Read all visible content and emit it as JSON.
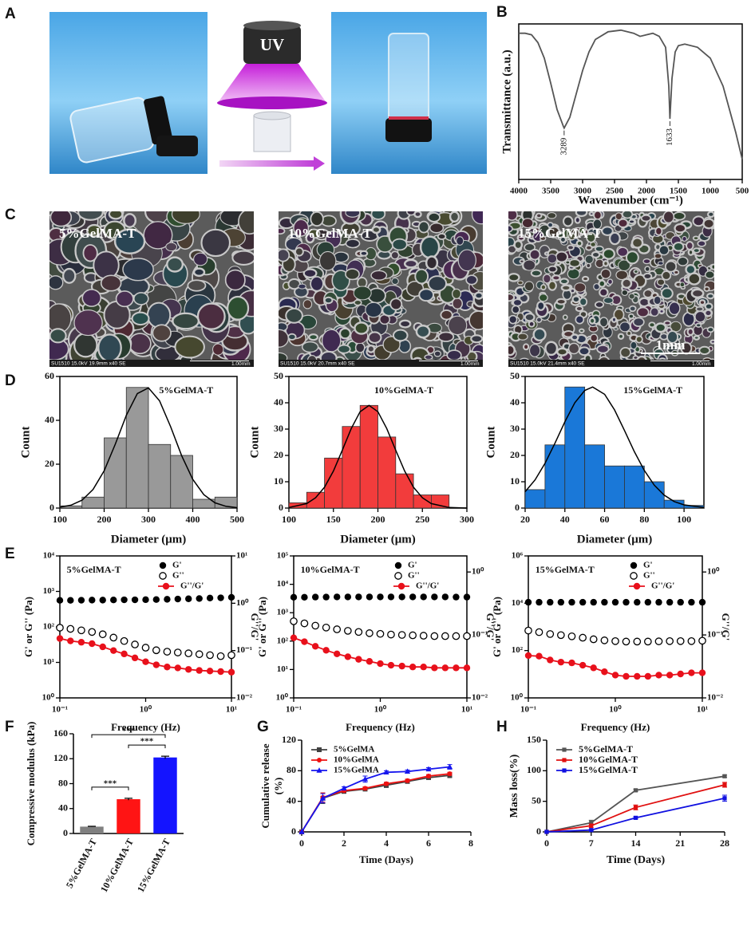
{
  "panels": [
    "A",
    "B",
    "C",
    "D",
    "E",
    "F",
    "G",
    "H"
  ],
  "photos": {
    "lamp_label": "UV"
  },
  "sem": [
    {
      "label": "5%GelMA-T",
      "info": "SU1510 15.0kV 19.9mm x40 SE",
      "scale": "1.00mm"
    },
    {
      "label": "10%GelMA-T",
      "info": "SU1510 15.0kV 20.7mm x40 SE",
      "scale": "1.00mm"
    },
    {
      "label": "15%GelMA-T",
      "info": "SU1510 15.0kV 21.4mm x40 SE",
      "scale": "1.00mm",
      "scale_bar": "1mm"
    }
  ],
  "chart_data": [
    {
      "type": "line",
      "xlabel": "Wavenumber (cm⁻¹)",
      "ylabel": "Transmittance (a.u.)",
      "x": [
        4000,
        3900,
        3800,
        3700,
        3600,
        3500,
        3400,
        3300,
        3289,
        3200,
        3100,
        3000,
        2900,
        2800,
        2600,
        2400,
        2200,
        2100,
        2000,
        1900,
        1800,
        1700,
        1650,
        1633,
        1600,
        1550,
        1500,
        1400,
        1200,
        1000,
        800,
        600,
        500
      ],
      "series": [
        {
          "name": "FTIR",
          "color": "#555555",
          "values": [
            94,
            94,
            93,
            88,
            78,
            62,
            45,
            34,
            33,
            40,
            55,
            70,
            82,
            90,
            95,
            96,
            94,
            92,
            93,
            94,
            92,
            85,
            60,
            39,
            65,
            82,
            86,
            87,
            85,
            78,
            60,
            30,
            13
          ]
        }
      ],
      "xlim": [
        4000,
        500
      ],
      "xticks": [
        4000,
        3500,
        3000,
        2500,
        2000,
        1500,
        1000,
        500
      ],
      "ylim": [
        0,
        100
      ],
      "annotations": [
        {
          "x": 3289,
          "label": "3289"
        },
        {
          "x": 1633,
          "label": "1633"
        }
      ]
    },
    {
      "type": "histogram",
      "title": "5%GelMA-T",
      "xlabel": "Diameter (μm)",
      "ylabel": "Count",
      "color": "#999999",
      "bins": [
        100,
        150,
        200,
        250,
        300,
        350,
        400,
        450,
        500
      ],
      "counts": [
        1,
        5,
        32,
        55,
        29,
        24,
        4,
        5
      ],
      "fit": {
        "x": [
          100,
          125,
          150,
          175,
          200,
          225,
          250,
          275,
          300,
          325,
          350,
          375,
          400,
          425,
          450,
          475,
          500
        ],
        "values": [
          0.4,
          1.3,
          3.6,
          8.5,
          17,
          29.1,
          42.3,
          52.2,
          54.8,
          48.9,
          37.1,
          23.9,
          13.1,
          6.1,
          2.4,
          0.8,
          0.2
        ]
      },
      "xlim": [
        100,
        500
      ],
      "xticks": [
        100,
        200,
        300,
        400,
        500
      ],
      "ylim": [
        0,
        60
      ],
      "yticks": [
        0,
        20,
        40,
        60
      ]
    },
    {
      "type": "histogram",
      "title": "10%GelMA-T",
      "xlabel": "Diameter (μm)",
      "ylabel": "Count",
      "color": "#f23c3c",
      "bins": [
        100,
        120,
        140,
        160,
        180,
        200,
        220,
        240,
        260,
        280
      ],
      "counts": [
        2,
        6,
        19,
        31,
        39,
        27,
        13,
        5,
        5
      ],
      "fit": {
        "x": [
          100,
          120,
          130,
          140,
          150,
          160,
          170,
          180,
          190,
          200,
          210,
          220,
          230,
          240,
          250,
          260,
          280,
          300
        ],
        "values": [
          0.2,
          1.7,
          3.9,
          7.9,
          14.1,
          22,
          30.2,
          36.6,
          39,
          36.6,
          30.2,
          22,
          14.1,
          7.9,
          3.9,
          1.7,
          0.2,
          0
        ]
      },
      "xlim": [
        100,
        300
      ],
      "xticks": [
        100,
        150,
        200,
        250,
        300
      ],
      "ylim": [
        0,
        50
      ],
      "yticks": [
        0,
        10,
        20,
        30,
        40,
        50
      ]
    },
    {
      "type": "histogram",
      "title": "15%GelMA-T",
      "xlabel": "Diameter (μm)",
      "ylabel": "Count",
      "color": "#1a78d8",
      "bins": [
        20,
        30,
        40,
        50,
        60,
        70,
        80,
        90,
        100,
        110
      ],
      "counts": [
        7,
        24,
        46,
        24,
        16,
        16,
        10,
        3,
        1
      ],
      "fit": {
        "x": [
          20,
          25,
          30,
          35,
          40,
          45,
          50,
          54,
          60,
          65,
          70,
          75,
          80,
          85,
          90,
          95,
          100,
          110
        ],
        "values": [
          6.2,
          10.7,
          17,
          24.6,
          32.8,
          40,
          44.7,
          46,
          43.2,
          37.3,
          29.5,
          21.4,
          14.3,
          8.7,
          4.9,
          2.5,
          1.2,
          0.2
        ]
      },
      "xlim": [
        20,
        110
      ],
      "xticks": [
        20,
        40,
        60,
        80,
        100
      ],
      "ylim": [
        0,
        50
      ],
      "yticks": [
        0,
        10,
        20,
        30,
        40,
        50
      ]
    },
    {
      "type": "line",
      "title": "5%GelMA-T",
      "xlabel": "Frequency (Hz)",
      "ylabel": "G' or G'' (Pa)",
      "y2label": "G''/G'",
      "xlog": true,
      "ylog": true,
      "y2log": true,
      "legend": "upper right",
      "x": [
        0.1,
        0.133,
        0.178,
        0.237,
        0.316,
        0.422,
        0.562,
        0.75,
        1,
        1.33,
        1.78,
        2.37,
        3.16,
        4.22,
        5.62,
        7.5,
        10
      ],
      "series": [
        {
          "name": "G'",
          "color": "#000000",
          "marker": "circle",
          "line": false,
          "values": [
            560,
            560,
            565,
            570,
            570,
            575,
            580,
            580,
            585,
            590,
            600,
            610,
            620,
            630,
            650,
            660,
            680
          ]
        },
        {
          "name": "G''",
          "color": "#000000",
          "marker": "open-circle",
          "line": false,
          "values": [
            95,
            88,
            80,
            72,
            62,
            50,
            40,
            32,
            26,
            22,
            20,
            19,
            18,
            17,
            16,
            15,
            16
          ]
        },
        {
          "name": "G''/G'",
          "color": "#e8101b",
          "marker": "circle",
          "axis": "y2",
          "values": [
            0.18,
            0.16,
            0.15,
            0.14,
            0.12,
            0.1,
            0.085,
            0.07,
            0.058,
            0.05,
            0.045,
            0.043,
            0.04,
            0.038,
            0.037,
            0.036,
            0.035
          ]
        }
      ],
      "xlim": [
        0.1,
        10
      ],
      "xticks": [
        {
          "value": 0.1,
          "label": "10⁻¹"
        },
        {
          "value": 1,
          "label": "10⁰"
        },
        {
          "value": 10,
          "label": "10¹"
        }
      ],
      "ylim": [
        1,
        10000
      ],
      "yticks": [
        {
          "value": 1,
          "label": "10⁰"
        },
        {
          "value": 10,
          "label": "10¹"
        },
        {
          "value": 100,
          "label": "10²"
        },
        {
          "value": 1000,
          "label": "10³"
        },
        {
          "value": 10000,
          "label": "10⁴"
        }
      ],
      "y2lim": [
        0.01,
        10
      ],
      "y2ticks": [
        {
          "value": 0.01,
          "label": "10⁻²"
        },
        {
          "value": 0.1,
          "label": "10⁻¹"
        },
        {
          "value": 1,
          "label": "10⁰"
        },
        {
          "value": 10,
          "label": "10¹"
        }
      ]
    },
    {
      "type": "line",
      "title": "10%GelMA-T",
      "xlabel": "Frequency (Hz)",
      "ylabel": "G' or G'' (Pa)",
      "y2label": "G''/G'",
      "xlog": true,
      "ylog": true,
      "y2log": true,
      "legend": "upper right",
      "x": [
        0.1,
        0.133,
        0.178,
        0.237,
        0.316,
        0.422,
        0.562,
        0.75,
        1,
        1.33,
        1.78,
        2.37,
        3.16,
        4.22,
        5.62,
        7.5,
        10
      ],
      "series": [
        {
          "name": "G'",
          "color": "#000000",
          "marker": "circle",
          "line": false,
          "values": [
            3500,
            3500,
            3550,
            3550,
            3600,
            3600,
            3600,
            3600,
            3600,
            3600,
            3600,
            3600,
            3600,
            3600,
            3600,
            3550,
            3550
          ]
        },
        {
          "name": "G''",
          "color": "#000000",
          "marker": "open-circle",
          "line": false,
          "values": [
            500,
            420,
            350,
            300,
            260,
            230,
            210,
            190,
            180,
            170,
            165,
            160,
            155,
            150,
            150,
            150,
            150
          ]
        },
        {
          "name": "G''/G'",
          "color": "#e8101b",
          "marker": "circle",
          "axis": "y2",
          "values": [
            0.09,
            0.078,
            0.066,
            0.057,
            0.05,
            0.045,
            0.041,
            0.038,
            0.035,
            0.033,
            0.032,
            0.031,
            0.031,
            0.03,
            0.03,
            0.03,
            0.03
          ]
        }
      ],
      "xlim": [
        0.1,
        10
      ],
      "xticks": [
        {
          "value": 0.1,
          "label": "10⁻¹"
        },
        {
          "value": 1,
          "label": "10⁰"
        },
        {
          "value": 10,
          "label": "10¹"
        }
      ],
      "ylim": [
        1,
        100000
      ],
      "yticks": [
        {
          "value": 1,
          "label": "10⁰"
        },
        {
          "value": 10,
          "label": "10¹"
        },
        {
          "value": 100,
          "label": "10²"
        },
        {
          "value": 1000,
          "label": "10³"
        },
        {
          "value": 10000,
          "label": "10⁴"
        },
        {
          "value": 100000,
          "label": "10⁵"
        }
      ],
      "y2lim": [
        0.01,
        1.8
      ],
      "y2ticks": [
        {
          "value": 0.01,
          "label": "10⁻²"
        },
        {
          "value": 0.1,
          "label": "10⁻¹"
        },
        {
          "value": 1,
          "label": "10⁰"
        }
      ]
    },
    {
      "type": "line",
      "title": "15%GelMA-T",
      "xlabel": "Frequency (Hz)",
      "ylabel": "G' or G'' (Pa)",
      "y2label": "G''/G'",
      "xlog": true,
      "ylog": true,
      "y2log": true,
      "legend": "upper right",
      "x": [
        0.1,
        0.133,
        0.178,
        0.237,
        0.316,
        0.422,
        0.562,
        0.75,
        1,
        1.33,
        1.78,
        2.37,
        3.16,
        4.22,
        5.62,
        7.5,
        10
      ],
      "series": [
        {
          "name": "G'",
          "color": "#000000",
          "marker": "circle",
          "line": false,
          "values": [
            11000,
            11000,
            11000,
            11000,
            11000,
            11000,
            11000,
            11000,
            11000,
            11000,
            11000,
            11000,
            11000,
            11000,
            11000,
            11000,
            11000
          ]
        },
        {
          "name": "G''",
          "color": "#000000",
          "marker": "open-circle",
          "line": false,
          "values": [
            700,
            600,
            500,
            450,
            400,
            350,
            300,
            270,
            250,
            240,
            240,
            240,
            245,
            250,
            250,
            250,
            260
          ]
        },
        {
          "name": "G''/G'",
          "color": "#e8101b",
          "marker": "circle",
          "axis": "y2",
          "values": [
            0.047,
            0.046,
            0.04,
            0.037,
            0.036,
            0.033,
            0.03,
            0.026,
            0.023,
            0.022,
            0.022,
            0.022,
            0.023,
            0.023,
            0.024,
            0.025,
            0.025
          ]
        }
      ],
      "xlim": [
        0.1,
        10
      ],
      "xticks": [
        {
          "value": 0.1,
          "label": "10⁻¹"
        },
        {
          "value": 1,
          "label": "10⁰"
        },
        {
          "value": 10,
          "label": "10¹"
        }
      ],
      "ylim": [
        1,
        1000000
      ],
      "yticks": [
        {
          "value": 1,
          "label": "10⁰"
        },
        {
          "value": 100,
          "label": "10²"
        },
        {
          "value": 10000,
          "label": "10⁴"
        },
        {
          "value": 1000000,
          "label": "10⁶"
        }
      ],
      "y2lim": [
        0.01,
        1.8
      ],
      "y2ticks": [
        {
          "value": 0.01,
          "label": "10⁻²"
        },
        {
          "value": 0.1,
          "label": "10⁻¹"
        },
        {
          "value": 1,
          "label": "10⁰"
        }
      ]
    },
    {
      "type": "bar",
      "ylabel": "Compressive modulus (kPa)",
      "categories": [
        "5%GelMA-T",
        "10%GelMA-T",
        "15%GelMA-T"
      ],
      "values": [
        11,
        55,
        122
      ],
      "errors": [
        0.5,
        1.5,
        2
      ],
      "colors": [
        "#808080",
        "#ff1414",
        "#1414ff"
      ],
      "ylim": [
        0,
        160
      ],
      "yticks": [
        0,
        40,
        80,
        120,
        160
      ],
      "significance": [
        {
          "groups": [
            "5%GelMA-T",
            "10%GelMA-T"
          ],
          "label": "***"
        },
        {
          "groups": [
            "10%GelMA-T",
            "15%GelMA-T"
          ],
          "label": "***"
        },
        {
          "groups": [
            "5%GelMA-T",
            "15%GelMA-T"
          ],
          "label": "***"
        }
      ]
    },
    {
      "type": "line",
      "xlabel": "Time (Days)",
      "ylabel": [
        "Cumulative  release",
        "(%)"
      ],
      "legend": "upper left",
      "x": [
        0,
        1,
        2,
        3,
        4,
        5,
        6,
        7
      ],
      "series": [
        {
          "name": "5%GelMA",
          "color": "#404040",
          "marker": "square",
          "values": [
            0,
            44,
            53,
            56,
            61,
            66,
            71,
            74
          ],
          "errors": [
            0,
            7,
            2,
            2,
            3,
            2,
            2,
            3
          ]
        },
        {
          "name": "10%GelMA",
          "color": "#ee1111",
          "marker": "circle",
          "values": [
            0,
            45,
            54,
            57,
            63,
            67,
            73,
            76
          ],
          "errors": [
            0,
            6,
            2,
            2,
            2,
            2,
            2,
            2
          ]
        },
        {
          "name": "15%GelMA",
          "color": "#1515ee",
          "marker": "triangle",
          "values": [
            0,
            44,
            57,
            69,
            78,
            79,
            82,
            85
          ],
          "errors": [
            0,
            6,
            2,
            4,
            2,
            2,
            2,
            3
          ]
        }
      ],
      "xlim": [
        0,
        8
      ],
      "xticks": [
        0,
        2,
        4,
        6,
        8
      ],
      "ylim": [
        0,
        120
      ],
      "yticks": [
        0,
        40,
        80,
        120
      ]
    },
    {
      "type": "line",
      "xlabel": "Time (Days)",
      "ylabel": "Mass loss(%)",
      "legend": "upper left",
      "x": [
        0,
        7,
        14,
        28
      ],
      "series": [
        {
          "name": "5%GelMA-T",
          "color": "#555555",
          "marker": "square",
          "values": [
            0,
            15,
            68,
            91
          ],
          "errors": [
            0,
            4,
            2,
            2
          ]
        },
        {
          "name": "10%GelMA-T",
          "color": "#e01010",
          "marker": "square",
          "values": [
            0,
            10,
            40,
            77
          ],
          "errors": [
            0,
            3,
            4,
            4
          ]
        },
        {
          "name": "15%GelMA-T",
          "color": "#1010e0",
          "marker": "square",
          "values": [
            0,
            3,
            23,
            55
          ],
          "errors": [
            0,
            1,
            2,
            5
          ]
        }
      ],
      "xlim": [
        0,
        28
      ],
      "xticks": [
        0,
        7,
        14,
        21,
        28
      ],
      "ylim": [
        0,
        150
      ],
      "yticks": [
        0,
        50,
        100,
        150
      ]
    }
  ]
}
